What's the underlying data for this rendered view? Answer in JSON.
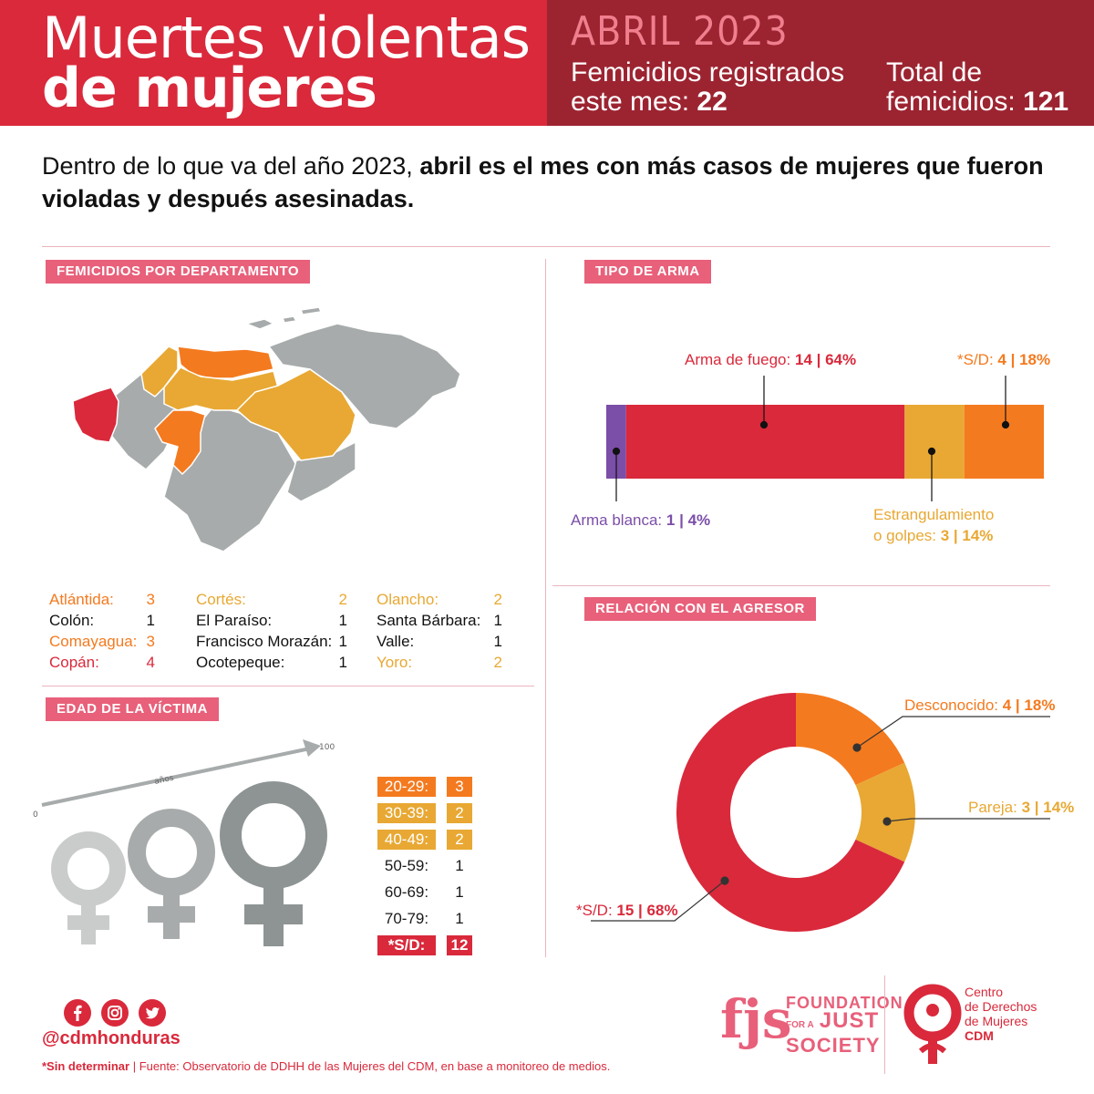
{
  "header": {
    "title_line1": "Muertes violentas",
    "title_line2": "de mujeres",
    "month": "ABRIL 2023",
    "month_label_line1": "Femicidios registrados",
    "month_label_line2": "este mes:",
    "month_count": "22",
    "total_label_line1": "Total de",
    "total_label_line2": "femicidios:",
    "total_count": "121"
  },
  "intro": {
    "plain": "Dentro de lo que va del año 2023,",
    "bold": "abril es el mes con más casos de mujeres que fueron violadas y después asesinadas."
  },
  "sections": {
    "departments": "FEMICIDIOS POR DEPARTAMENTO",
    "weapon": "TIPO DE ARMA",
    "relation": "RELACIÓN CON EL AGRESOR",
    "age": "EDAD DE LA VÍCTIMA"
  },
  "departments": [
    {
      "name": "Atlántida:",
      "value": "3",
      "color": "#f47a1f"
    },
    {
      "name": "Colón:",
      "value": "1",
      "color": "#111111"
    },
    {
      "name": "Comayagua:",
      "value": "3",
      "color": "#f47a1f"
    },
    {
      "name": "Copán:",
      "value": "4",
      "color": "#d9293b"
    },
    {
      "name": "Cortés:",
      "value": "2",
      "color": "#e8a833"
    },
    {
      "name": "El Paraíso:",
      "value": "1",
      "color": "#111111"
    },
    {
      "name": "Francisco Morazán:",
      "value": "1",
      "color": "#111111"
    },
    {
      "name": "Ocotepeque:",
      "value": "1",
      "color": "#111111"
    },
    {
      "name": "Olancho:",
      "value": "2",
      "color": "#e8a833"
    },
    {
      "name": "Santa Bárbara:",
      "value": "1",
      "color": "#111111"
    },
    {
      "name": "Valle:",
      "value": "1",
      "color": "#111111"
    },
    {
      "name": "Yoro:",
      "value": "2",
      "color": "#e8a833"
    }
  ],
  "age": {
    "axis_start": "0",
    "axis_end": "100",
    "axis_label": "años",
    "rows": [
      {
        "range": "20-29:",
        "value": "3",
        "bg": "#f47a1f"
      },
      {
        "range": "30-39:",
        "value": "2",
        "bg": "#e8a833"
      },
      {
        "range": "40-49:",
        "value": "2",
        "bg": "#e8a833"
      },
      {
        "range": "50-59:",
        "value": "1",
        "bg": ""
      },
      {
        "range": "60-69:",
        "value": "1",
        "bg": ""
      },
      {
        "range": "70-79:",
        "value": "1",
        "bg": ""
      },
      {
        "range": "*S/D:",
        "value": "12",
        "bg": "#d9293b"
      }
    ]
  },
  "weapon_labels": {
    "fuego_name": "Arma de fuego:",
    "fuego_value": "14 | 64%",
    "sd_name": "*S/D:",
    "sd_value": "4 | 18%",
    "blanca_name": "Arma blanca:",
    "blanca_value": "1 | 4%",
    "estr_line1": "Estrangulamiento",
    "estr_line2": "o golpes:",
    "estr_value": "3 | 14%"
  },
  "relation_labels": {
    "desc_name": "Desconocido:",
    "desc_value": "4 | 18%",
    "pareja_name": "Pareja:",
    "pareja_value": "3 | 14%",
    "sd_name": "*S/D:",
    "sd_value": "15 | 68%"
  },
  "footer": {
    "handle": "@cdmhonduras",
    "note_bold": "*Sin determinar",
    "note_rest": " | Fuente: Observatorio de DDHH de las Mujeres del CDM, en base a monitoreo de medios.",
    "fjs_mark": "fjs",
    "fjs_line1": "FOUNDATION",
    "fjs_line2_small": "FOR A",
    "fjs_line2": "JUST",
    "fjs_line3": "SOCIETY",
    "cdm_line1": "Centro",
    "cdm_line2": "de Derechos",
    "cdm_line3": "de Mujeres",
    "cdm_line4": "CDM"
  },
  "chart_data": [
    {
      "type": "bar",
      "title": "TIPO DE ARMA",
      "categories": [
        "Arma blanca",
        "Arma de fuego",
        "Estrangulamiento o golpes",
        "*S/D"
      ],
      "values": [
        1,
        14,
        3,
        4
      ],
      "percents": [
        4,
        64,
        14,
        18
      ],
      "colors": [
        "#7b4ea8",
        "#d9293b",
        "#e8a833",
        "#f47a1f"
      ]
    },
    {
      "type": "pie",
      "title": "RELACIÓN CON EL AGRESOR",
      "categories": [
        "Desconocido",
        "Pareja",
        "*S/D"
      ],
      "values": [
        4,
        3,
        15
      ],
      "percents": [
        18,
        14,
        68
      ],
      "colors": [
        "#f47a1f",
        "#e8a833",
        "#d9293b"
      ]
    },
    {
      "type": "table",
      "title": "EDAD DE LA VÍCTIMA",
      "categories": [
        "20-29",
        "30-39",
        "40-49",
        "50-59",
        "60-69",
        "70-79",
        "*S/D"
      ],
      "values": [
        3,
        2,
        2,
        1,
        1,
        1,
        12
      ]
    }
  ]
}
